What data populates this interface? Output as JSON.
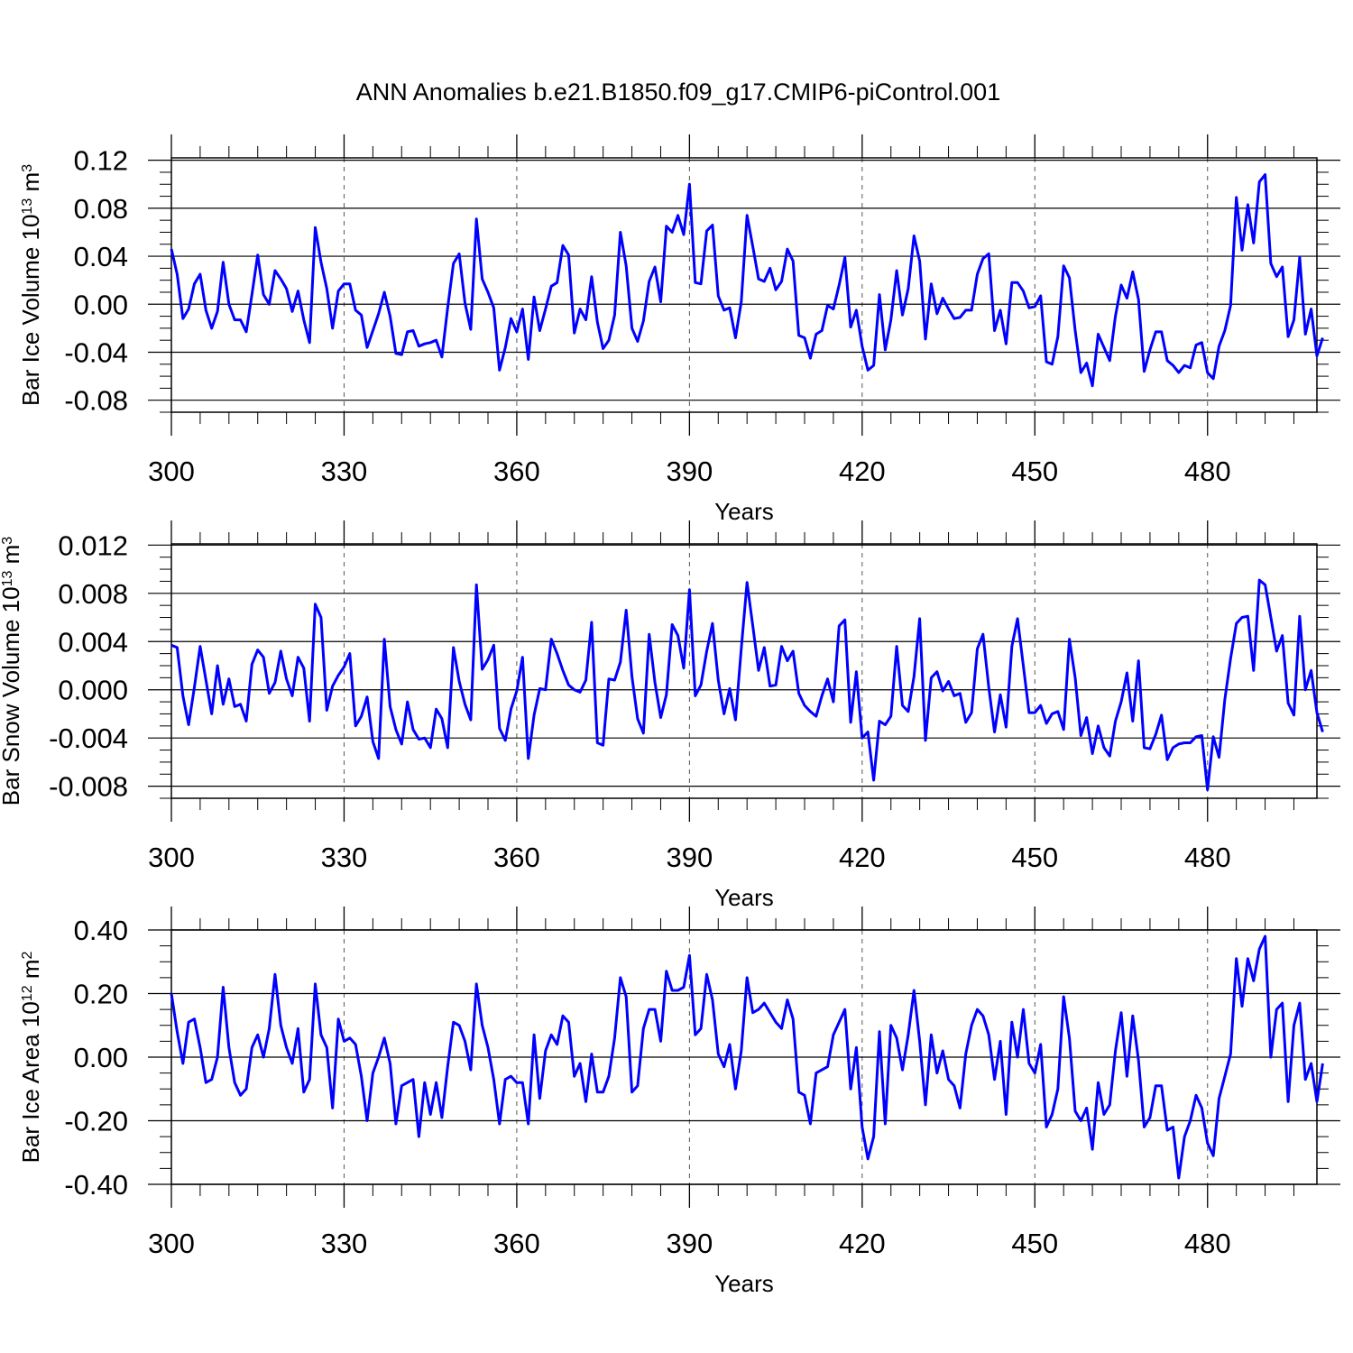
{
  "chart_data": [
    {
      "type": "line",
      "id": "ice-volume",
      "figure_title": "ANN Anomalies b.e21.B1850.f09_g17.CMIP6-piControl.001",
      "ylabel": "Bar Ice Volume 10",
      "ylabel_exp": "13",
      "ylabel_unit": " m",
      "ylabel_unit_exp": "3",
      "xlabel": "Years",
      "xlim": [
        300,
        499
      ],
      "ylim": [
        -0.09,
        0.122
      ],
      "xticks": [
        300,
        330,
        360,
        390,
        420,
        450,
        480
      ],
      "xtick_labels": [
        "300",
        "330",
        "360",
        "390",
        "420",
        "450",
        "480"
      ],
      "yticks": [
        -0.08,
        -0.04,
        0.0,
        0.04,
        0.08,
        0.12
      ],
      "ytick_labels": [
        "-0.08",
        "-0.04",
        "0.00",
        "0.04",
        "0.08",
        "0.12"
      ],
      "line_color": "#0000ff",
      "series": [
        {
          "name": "Bar Ice Volume",
          "x_start": 300,
          "values": [
            0.046,
            0.025,
            -0.012,
            -0.004,
            0.017,
            0.025,
            -0.005,
            -0.02,
            -0.006,
            0.035,
            0.0,
            -0.013,
            -0.013,
            -0.023,
            0.008,
            0.041,
            0.008,
            0.0,
            0.028,
            0.021,
            0.013,
            -0.006,
            0.011,
            -0.013,
            -0.032,
            0.064,
            0.035,
            0.013,
            -0.02,
            0.011,
            0.017,
            0.017,
            -0.005,
            -0.009,
            -0.036,
            -0.022,
            -0.008,
            0.01,
            -0.01,
            -0.041,
            -0.042,
            -0.023,
            -0.022,
            -0.035,
            -0.033,
            -0.032,
            -0.03,
            -0.044,
            -0.003,
            0.034,
            0.042,
            0.001,
            -0.021,
            0.071,
            0.021,
            0.01,
            -0.003,
            -0.055,
            -0.036,
            -0.012,
            -0.023,
            -0.004,
            -0.046,
            0.006,
            -0.022,
            -0.004,
            0.015,
            0.018,
            0.049,
            0.041,
            -0.024,
            -0.004,
            -0.013,
            0.023,
            -0.015,
            -0.037,
            -0.03,
            -0.009,
            0.06,
            0.032,
            -0.02,
            -0.031,
            -0.014,
            0.019,
            0.031,
            0.002,
            0.065,
            0.06,
            0.074,
            0.058,
            0.1,
            0.018,
            0.017,
            0.061,
            0.066,
            0.007,
            -0.005,
            -0.003,
            -0.028,
            0.002,
            0.074,
            0.048,
            0.021,
            0.019,
            0.03,
            0.012,
            0.019,
            0.046,
            0.036,
            -0.026,
            -0.028,
            -0.045,
            -0.025,
            -0.022,
            -0.001,
            -0.004,
            0.016,
            0.039,
            -0.019,
            -0.005,
            -0.035,
            -0.055,
            -0.051,
            0.008,
            -0.038,
            -0.013,
            0.028,
            -0.009,
            0.013,
            0.057,
            0.036,
            -0.029,
            0.017,
            -0.008,
            0.005,
            -0.004,
            -0.012,
            -0.011,
            -0.005,
            -0.005,
            0.025,
            0.038,
            0.042,
            -0.022,
            -0.005,
            -0.033,
            0.018,
            0.018,
            0.011,
            -0.003,
            -0.002,
            0.007,
            -0.048,
            -0.05,
            -0.027,
            0.032,
            0.022,
            -0.022,
            -0.057,
            -0.049,
            -0.068,
            -0.025,
            -0.036,
            -0.047,
            -0.01,
            0.016,
            0.005,
            0.027,
            0.004,
            -0.056,
            -0.038,
            -0.023,
            -0.023,
            -0.047,
            -0.051,
            -0.057,
            -0.051,
            -0.053,
            -0.034,
            -0.032,
            -0.057,
            -0.062,
            -0.035,
            -0.022,
            -0.001,
            0.089,
            0.045,
            0.083,
            0.051,
            0.102,
            0.108,
            0.034,
            0.023,
            0.031,
            -0.027,
            -0.013,
            0.039,
            -0.025,
            -0.004,
            -0.043,
            -0.028
          ]
        }
      ]
    },
    {
      "type": "line",
      "id": "snow-volume",
      "ylabel": "Bar Snow Volume 10",
      "ylabel_exp": "13",
      "ylabel_unit": " m",
      "ylabel_unit_exp": "3",
      "xlabel": "Years",
      "xlim": [
        300,
        499
      ],
      "ylim": [
        -0.009,
        0.0121
      ],
      "xticks": [
        300,
        330,
        360,
        390,
        420,
        450,
        480
      ],
      "xtick_labels": [
        "300",
        "330",
        "360",
        "390",
        "420",
        "450",
        "480"
      ],
      "yticks": [
        -0.008,
        -0.004,
        0.0,
        0.004,
        0.008,
        0.012
      ],
      "ytick_labels": [
        "-0.008",
        "-0.004",
        "0.000",
        "0.004",
        "0.008",
        "0.012"
      ],
      "line_color": "#0000ff",
      "series": [
        {
          "name": "Bar Snow Volume",
          "x_start": 300,
          "values": [
            0.0037,
            0.0035,
            -0.0005,
            -0.0029,
            0.0002,
            0.0036,
            0.0008,
            -0.002,
            0.002,
            -0.0012,
            0.0009,
            -0.0014,
            -0.0012,
            -0.0026,
            0.0021,
            0.0033,
            0.0027,
            -0.0003,
            0.0006,
            0.0032,
            0.0009,
            -0.0005,
            0.0027,
            0.0018,
            -0.0026,
            0.0071,
            0.006,
            -0.0017,
            0.0003,
            0.0012,
            0.0019,
            0.003,
            -0.003,
            -0.0022,
            -0.0006,
            -0.0043,
            -0.0057,
            0.0042,
            -0.0014,
            -0.0033,
            -0.0045,
            -0.001,
            -0.0033,
            -0.0041,
            -0.004,
            -0.0048,
            -0.0016,
            -0.0024,
            -0.0048,
            0.0035,
            0.0007,
            -0.0012,
            -0.0025,
            0.0087,
            0.0017,
            0.0025,
            0.0037,
            -0.0032,
            -0.0042,
            -0.0016,
            -0.0001,
            0.0027,
            -0.0057,
            -0.0021,
            0.0001,
            0.0,
            0.0042,
            0.003,
            0.0016,
            0.0004,
            0.0,
            -0.0002,
            0.0008,
            0.0056,
            -0.0044,
            -0.0046,
            0.0009,
            0.0008,
            0.0023,
            0.0066,
            0.0011,
            -0.0024,
            -0.0036,
            0.0046,
            0.0006,
            -0.0023,
            -0.0004,
            0.0054,
            0.0045,
            0.0018,
            0.0083,
            -0.0005,
            0.0004,
            0.0032,
            0.0055,
            0.0008,
            -0.002,
            0.0001,
            -0.0025,
            0.0034,
            0.0089,
            0.0053,
            0.0016,
            0.0035,
            0.0003,
            0.0004,
            0.0036,
            0.0024,
            0.0032,
            -0.0003,
            -0.0013,
            -0.0018,
            -0.0022,
            -0.0005,
            0.0009,
            -0.001,
            0.0053,
            0.0058,
            -0.0027,
            0.0015,
            -0.004,
            -0.0035,
            -0.0075,
            -0.0026,
            -0.0029,
            -0.0022,
            0.0036,
            -0.0013,
            -0.0018,
            0.0011,
            0.0059,
            -0.0042,
            0.001,
            0.0015,
            -0.0001,
            0.0007,
            -0.0005,
            -0.0003,
            -0.0027,
            -0.0019,
            0.0034,
            0.0046,
            0.0002,
            -0.0035,
            -0.0004,
            -0.0031,
            0.0036,
            0.0059,
            0.002,
            -0.0019,
            -0.0019,
            -0.0013,
            -0.0028,
            -0.002,
            -0.0018,
            -0.0033,
            0.0042,
            0.001,
            -0.0038,
            -0.0023,
            -0.0053,
            -0.003,
            -0.0048,
            -0.0055,
            -0.0026,
            -0.001,
            0.0014,
            -0.0026,
            0.0024,
            -0.0048,
            -0.0049,
            -0.0037,
            -0.0021,
            -0.0058,
            -0.0048,
            -0.0045,
            -0.0044,
            -0.0044,
            -0.0039,
            -0.0038,
            -0.0083,
            -0.0039,
            -0.0056,
            -0.0008,
            0.0026,
            0.0055,
            0.006,
            0.0061,
            0.0016,
            0.0091,
            0.0087,
            0.006,
            0.0032,
            0.0045,
            -0.0011,
            -0.0021,
            0.0061,
            0.0,
            0.0016,
            -0.0019,
            -0.0035
          ]
        }
      ]
    },
    {
      "type": "line",
      "id": "ice-area",
      "ylabel": "Bar Ice Area 10",
      "ylabel_exp": "12",
      "ylabel_unit": " m",
      "ylabel_unit_exp": "2",
      "xlabel": "Years",
      "xlim": [
        300,
        499
      ],
      "ylim": [
        -0.4,
        0.4
      ],
      "xticks": [
        300,
        330,
        360,
        390,
        420,
        450,
        480
      ],
      "xtick_labels": [
        "300",
        "330",
        "360",
        "390",
        "420",
        "450",
        "480"
      ],
      "yticks": [
        -0.4,
        -0.2,
        0.0,
        0.2,
        0.4
      ],
      "ytick_labels": [
        "-0.40",
        "-0.20",
        "0.00",
        "0.20",
        "0.40"
      ],
      "line_color": "#0000ff",
      "series": [
        {
          "name": "Bar Ice Area",
          "x_start": 300,
          "values": [
            0.2,
            0.08,
            -0.02,
            0.11,
            0.12,
            0.03,
            -0.08,
            -0.07,
            0.0,
            0.22,
            0.03,
            -0.08,
            -0.12,
            -0.1,
            0.03,
            0.07,
            0.0,
            0.09,
            0.26,
            0.1,
            0.03,
            -0.02,
            0.09,
            -0.11,
            -0.07,
            0.23,
            0.07,
            0.03,
            -0.16,
            0.12,
            0.05,
            0.06,
            0.04,
            -0.06,
            -0.2,
            -0.05,
            0.0,
            0.06,
            -0.02,
            -0.21,
            -0.09,
            -0.08,
            -0.07,
            -0.25,
            -0.08,
            -0.18,
            -0.08,
            -0.19,
            -0.03,
            0.11,
            0.1,
            0.05,
            -0.04,
            0.23,
            0.1,
            0.03,
            -0.07,
            -0.21,
            -0.07,
            -0.06,
            -0.08,
            -0.08,
            -0.21,
            0.07,
            -0.13,
            0.02,
            0.07,
            0.04,
            0.13,
            0.11,
            -0.06,
            -0.02,
            -0.14,
            0.01,
            -0.11,
            -0.11,
            -0.06,
            0.06,
            0.25,
            0.19,
            -0.11,
            -0.09,
            0.09,
            0.15,
            0.15,
            0.05,
            0.27,
            0.21,
            0.21,
            0.22,
            0.32,
            0.07,
            0.09,
            0.26,
            0.18,
            0.01,
            -0.03,
            0.04,
            -0.1,
            0.02,
            0.25,
            0.14,
            0.15,
            0.17,
            0.14,
            0.11,
            0.09,
            0.18,
            0.12,
            -0.11,
            -0.12,
            -0.21,
            -0.05,
            -0.04,
            -0.03,
            0.07,
            0.11,
            0.15,
            -0.1,
            0.03,
            -0.22,
            -0.32,
            -0.25,
            0.08,
            -0.21,
            0.1,
            0.06,
            -0.04,
            0.07,
            0.21,
            0.05,
            -0.15,
            0.07,
            -0.05,
            0.02,
            -0.07,
            -0.09,
            -0.16,
            0.01,
            0.1,
            0.15,
            0.13,
            0.07,
            -0.07,
            0.05,
            -0.18,
            0.11,
            0.0,
            0.15,
            -0.02,
            -0.05,
            0.04,
            -0.22,
            -0.18,
            -0.1,
            0.19,
            0.06,
            -0.17,
            -0.2,
            -0.16,
            -0.29,
            -0.08,
            -0.18,
            -0.15,
            0.02,
            0.14,
            -0.06,
            0.13,
            -0.01,
            -0.22,
            -0.19,
            -0.09,
            -0.09,
            -0.23,
            -0.22,
            -0.38,
            -0.25,
            -0.2,
            -0.12,
            -0.16,
            -0.27,
            -0.31,
            -0.13,
            -0.06,
            0.01,
            0.31,
            0.16,
            0.31,
            0.24,
            0.34,
            0.38,
            0.0,
            0.15,
            0.17,
            -0.14,
            0.1,
            0.17,
            -0.07,
            -0.02,
            -0.14,
            -0.02
          ]
        }
      ]
    }
  ]
}
